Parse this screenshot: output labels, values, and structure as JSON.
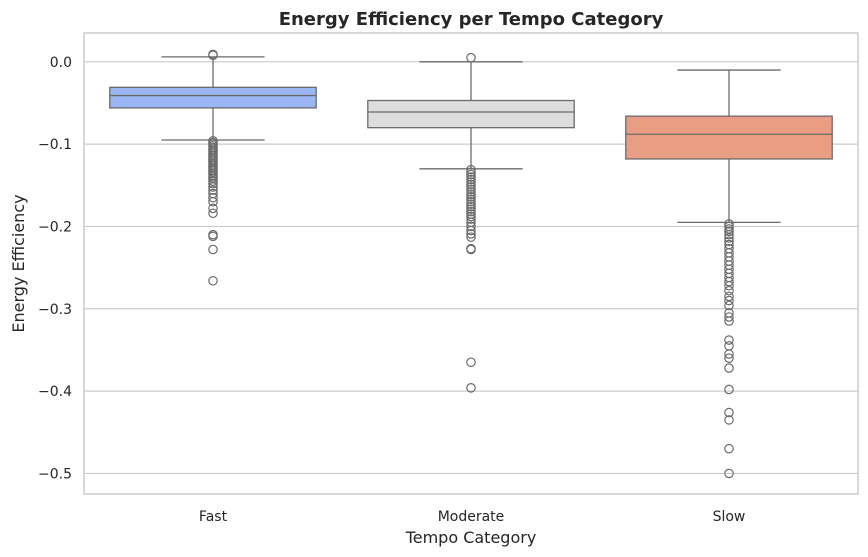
{
  "chart_data": {
    "type": "box",
    "title": "Energy Efficiency per Tempo Category",
    "xlabel": "Tempo Category",
    "ylabel": "Energy Efficiency",
    "ylim": [
      -0.525,
      0.035
    ],
    "yticks": [
      0.0,
      -0.1,
      -0.2,
      -0.3,
      -0.4,
      -0.5
    ],
    "ytick_labels": [
      "0.0",
      "−0.1",
      "−0.2",
      "−0.3",
      "−0.4",
      "−0.5"
    ],
    "grid": true,
    "categories": [
      "Fast",
      "Moderate",
      "Slow"
    ],
    "boxes": [
      {
        "category": "Fast",
        "color": "#9bb7f3",
        "whisker_high": 0.006,
        "q3": -0.031,
        "median": -0.041,
        "q1": -0.056,
        "whisker_low": -0.095,
        "outliers": [
          0.009,
          0.008,
          -0.096,
          -0.098,
          -0.1,
          -0.102,
          -0.104,
          -0.106,
          -0.108,
          -0.11,
          -0.112,
          -0.114,
          -0.116,
          -0.118,
          -0.12,
          -0.122,
          -0.124,
          -0.126,
          -0.128,
          -0.13,
          -0.132,
          -0.134,
          -0.136,
          -0.138,
          -0.14,
          -0.142,
          -0.145,
          -0.148,
          -0.152,
          -0.156,
          -0.16,
          -0.165,
          -0.17,
          -0.178,
          -0.184,
          -0.21,
          -0.212,
          -0.228,
          -0.266
        ]
      },
      {
        "category": "Moderate",
        "color": "#dddddd",
        "whisker_high": 0.0,
        "q3": -0.047,
        "median": -0.061,
        "q1": -0.08,
        "whisker_low": -0.13,
        "outliers": [
          0.005,
          -0.131,
          -0.134,
          -0.137,
          -0.14,
          -0.143,
          -0.146,
          -0.149,
          -0.152,
          -0.155,
          -0.158,
          -0.161,
          -0.164,
          -0.167,
          -0.17,
          -0.173,
          -0.176,
          -0.179,
          -0.182,
          -0.185,
          -0.188,
          -0.191,
          -0.195,
          -0.2,
          -0.205,
          -0.209,
          -0.213,
          -0.227,
          -0.228,
          -0.365,
          -0.396
        ]
      },
      {
        "category": "Slow",
        "color": "#e99e84",
        "whisker_high": -0.01,
        "q3": -0.066,
        "median": -0.088,
        "q1": -0.118,
        "whisker_low": -0.195,
        "outliers": [
          -0.197,
          -0.2,
          -0.203,
          -0.206,
          -0.21,
          -0.214,
          -0.218,
          -0.222,
          -0.227,
          -0.232,
          -0.237,
          -0.242,
          -0.247,
          -0.252,
          -0.257,
          -0.262,
          -0.267,
          -0.272,
          -0.278,
          -0.285,
          -0.29,
          -0.296,
          -0.305,
          -0.31,
          -0.315,
          -0.338,
          -0.345,
          -0.355,
          -0.36,
          -0.372,
          -0.398,
          -0.426,
          -0.435,
          -0.47,
          -0.5
        ]
      }
    ]
  }
}
